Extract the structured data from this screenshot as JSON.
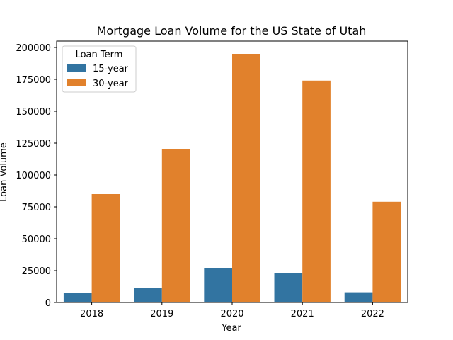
{
  "chart_data": {
    "type": "bar",
    "title": "Mortgage Loan Volume for the US State of Utah",
    "xlabel": "Year",
    "ylabel": "Loan Volume",
    "categories": [
      "2018",
      "2019",
      "2020",
      "2021",
      "2022"
    ],
    "series": [
      {
        "name": "15-year",
        "values": [
          7500,
          11500,
          27000,
          23000,
          8000
        ],
        "color": "#3274a1"
      },
      {
        "name": "30-year",
        "values": [
          85000,
          120000,
          195000,
          174000,
          79000
        ],
        "color": "#e1812c"
      }
    ],
    "ylim": [
      0,
      205000
    ],
    "yticks": [
      0,
      25000,
      50000,
      75000,
      100000,
      125000,
      150000,
      175000,
      200000
    ],
    "legend": {
      "title": "Loan Term",
      "placement": "top-left"
    },
    "grid": false
  }
}
